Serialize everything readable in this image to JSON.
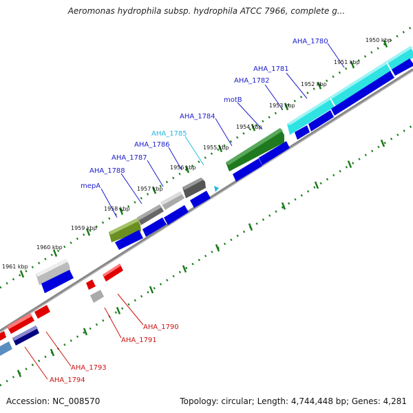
{
  "title": "Aeromonas hydrophila subsp. hydrophila ATCC 7966, complete g...",
  "footer": {
    "accession": "Accession: NC_008570",
    "summary": "Topology: circular; Length: 4,744,448 bp; Genes: 4,281"
  },
  "colors": {
    "backbone": "#888888",
    "cds_forward": "#0000e0",
    "cds_reverse": "#e00000",
    "ticks": "#1a7a1a",
    "label_blue": "#1a1acc",
    "label_red": "#cc1111",
    "label_cyan": "#22b8e0"
  },
  "ticks": [
    "1950 kbp",
    "1951 kbp",
    "1952 kbp",
    "1953 kbp",
    "1954 kbp",
    "1955 kbp",
    "1956 kbp",
    "1957 kbp",
    "1958 kbp",
    "1959 kbp",
    "1960 kbp",
    "1961 kbp"
  ],
  "gene_labels": [
    {
      "name": "AHA_1780",
      "color": "blue"
    },
    {
      "name": "AHA_1781",
      "color": "blue"
    },
    {
      "name": "AHA_1782",
      "color": "blue"
    },
    {
      "name": "motB",
      "color": "blue"
    },
    {
      "name": "AHA_1784",
      "color": "blue"
    },
    {
      "name": "AHA_1785",
      "color": "cyan"
    },
    {
      "name": "AHA_1786",
      "color": "blue"
    },
    {
      "name": "AHA_1787",
      "color": "blue"
    },
    {
      "name": "AHA_1788",
      "color": "blue"
    },
    {
      "name": "mepA",
      "color": "blue"
    },
    {
      "name": "AHA_1790",
      "color": "red"
    },
    {
      "name": "AHA_1791",
      "color": "red"
    },
    {
      "name": "AHA_1793",
      "color": "red"
    },
    {
      "name": "AHA_1794",
      "color": "red"
    }
  ]
}
